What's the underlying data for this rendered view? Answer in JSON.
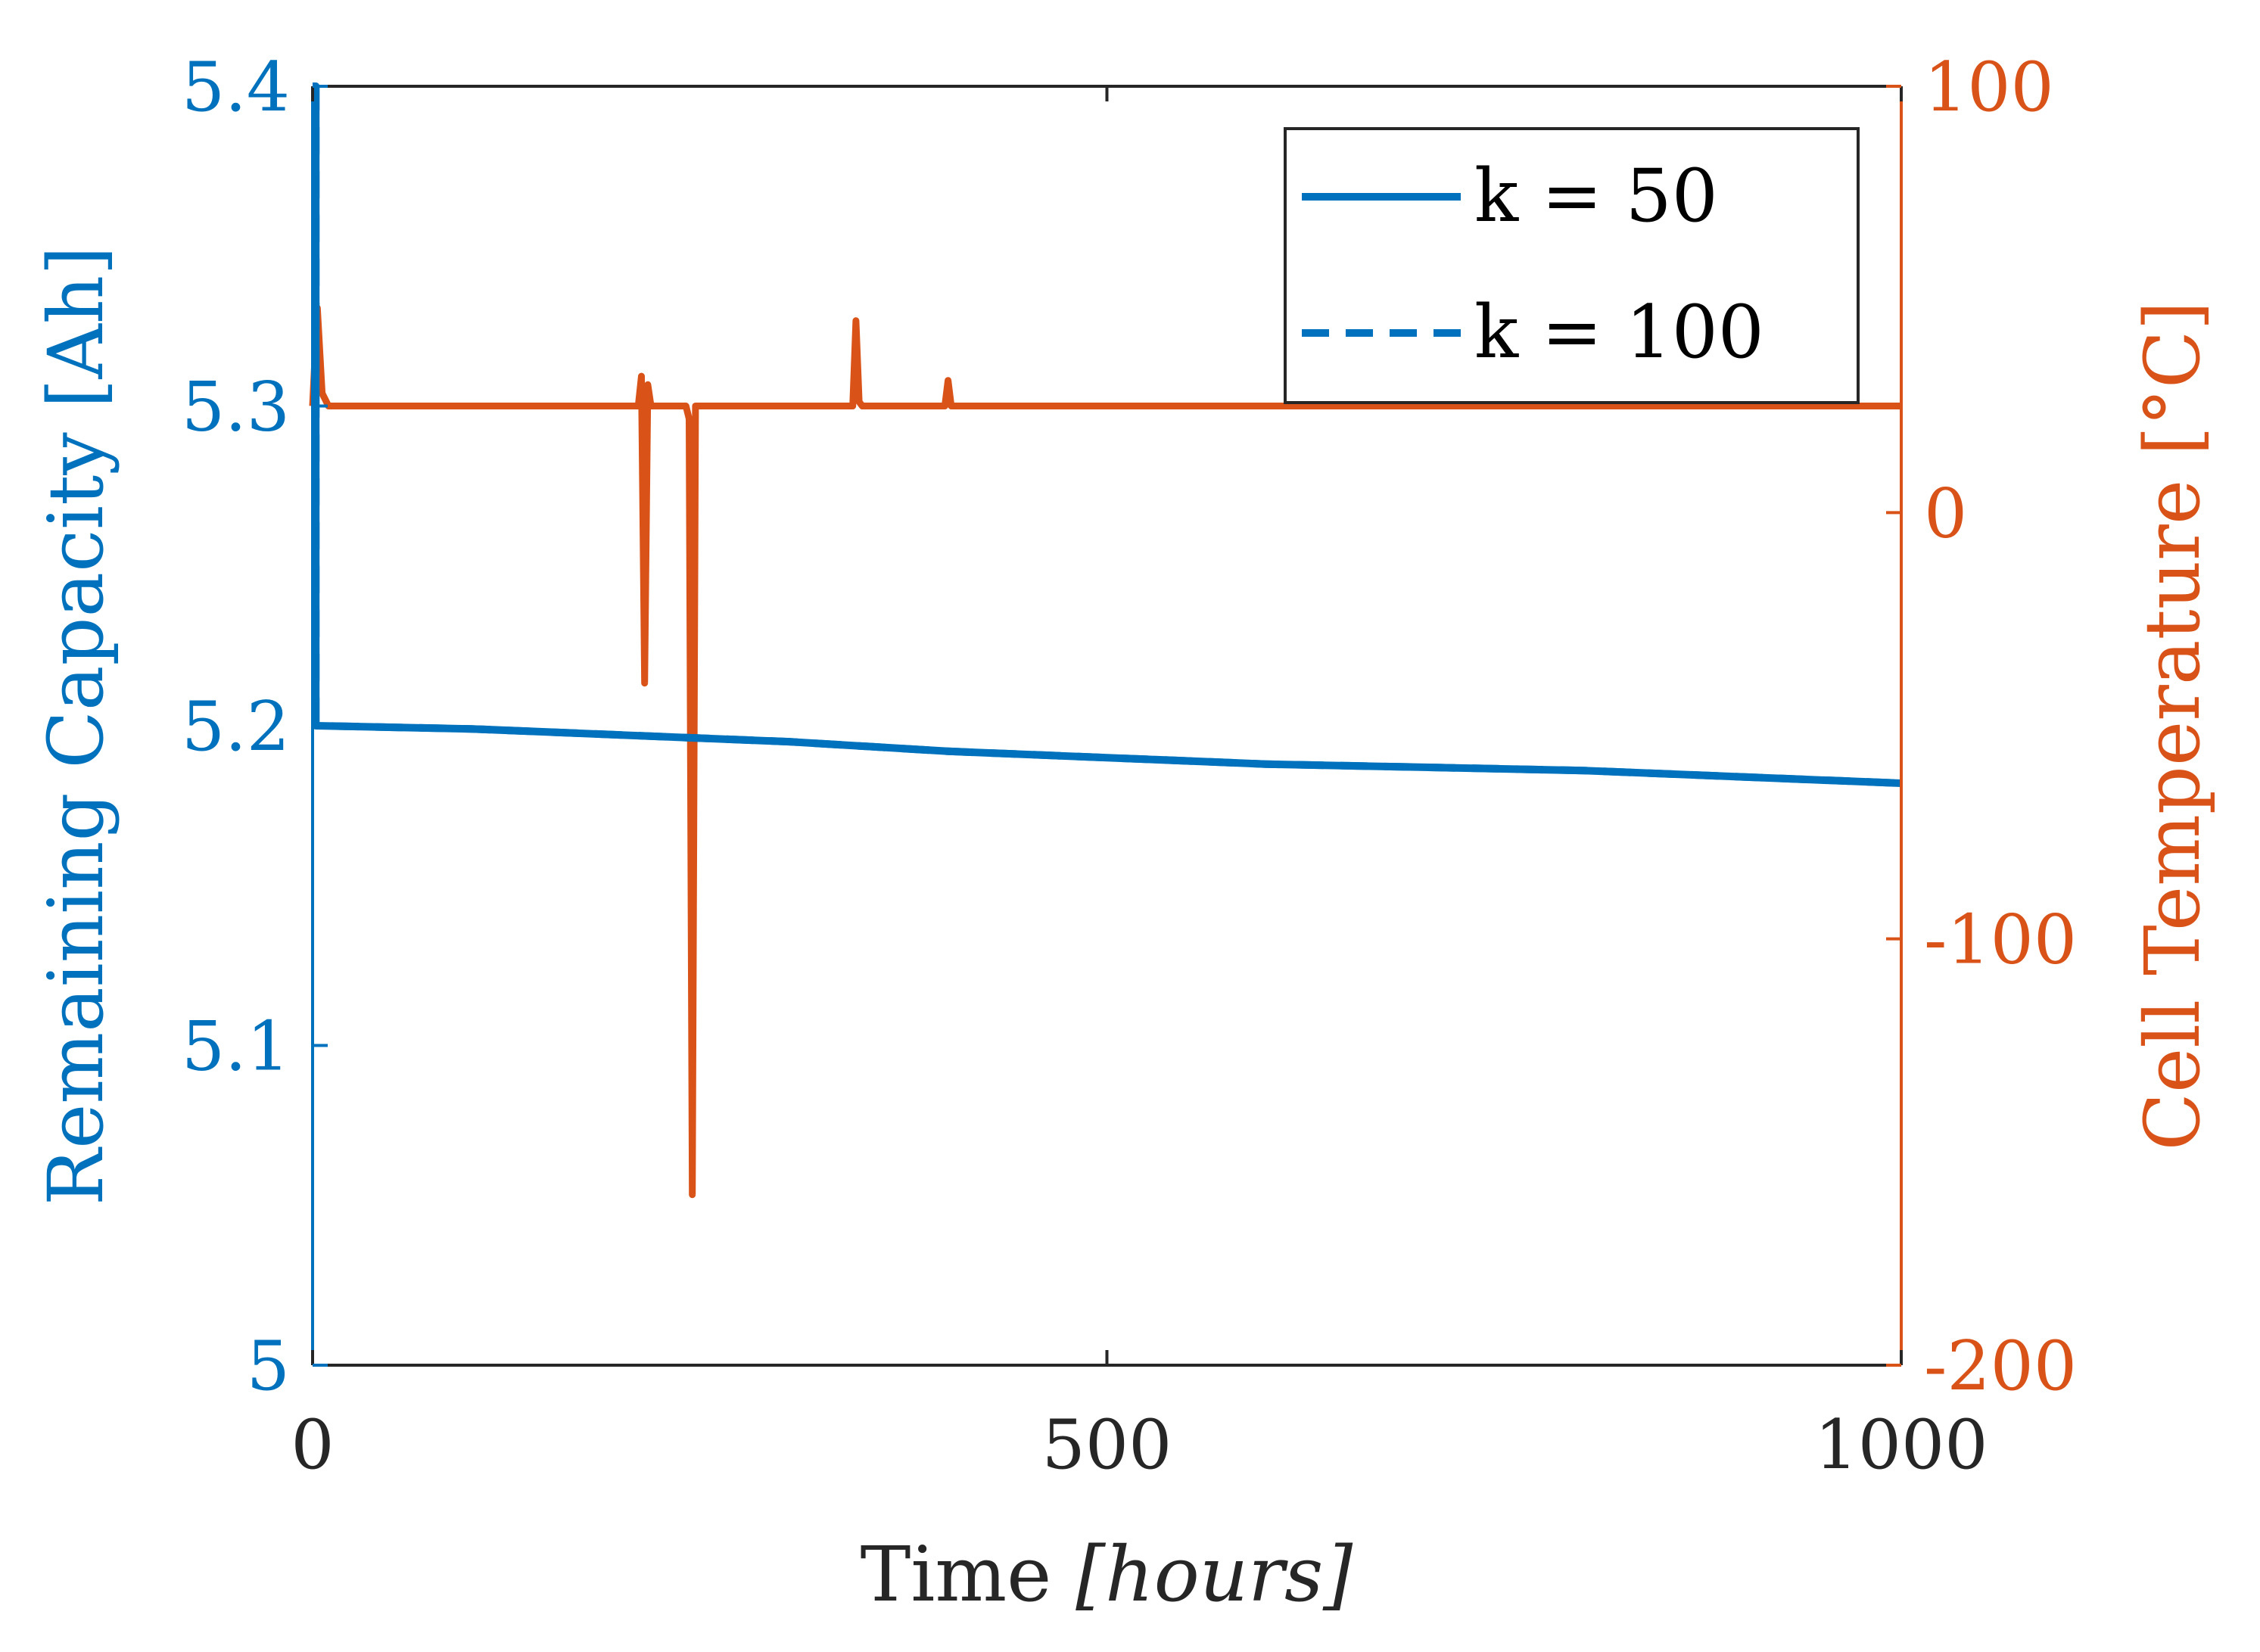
{
  "chart_data": {
    "type": "line",
    "title": "",
    "xlabel_main": "Time ",
    "xlabel_unit": "[hours]",
    "ylabel_left": "Remaining Capacity [Ah]",
    "ylabel_right": "Cell Temperature [°C]",
    "xlim": [
      0,
      1000
    ],
    "ylim_left": [
      5.0,
      5.4
    ],
    "ylim_right": [
      -200,
      100
    ],
    "x_ticks": [
      0,
      500,
      1000
    ],
    "y_left_ticks": [
      5,
      5.1,
      5.2,
      5.3,
      5.4
    ],
    "y_right_ticks": [
      -200,
      -100,
      0,
      100
    ],
    "x_tick_labels": [
      "0",
      "500",
      "1000"
    ],
    "y_left_tick_labels": [
      "5",
      "5.1",
      "5.2",
      "5.3",
      "5.4"
    ],
    "y_right_tick_labels": [
      "-200",
      "-100",
      "0",
      "100"
    ],
    "grid": false,
    "legend_position": "top-right",
    "colors": {
      "left_axis": "#0072BD",
      "right_axis": "#D95319",
      "axis_black": "#262626"
    },
    "series": [
      {
        "name": "k = 50",
        "axis": "left",
        "style": "solid",
        "color": "#0072BD",
        "x": [
          0,
          2,
          2,
          100,
          200,
          300,
          400,
          500,
          600,
          700,
          800,
          900,
          1000
        ],
        "y": [
          5.4,
          5.4,
          5.2,
          5.199,
          5.197,
          5.195,
          5.192,
          5.19,
          5.188,
          5.187,
          5.186,
          5.184,
          5.182
        ]
      },
      {
        "name": "k = 100",
        "axis": "left",
        "style": "dashed",
        "color": "#0072BD",
        "x": [
          0,
          2,
          2,
          100,
          200,
          300,
          400,
          500,
          600,
          700,
          800,
          900,
          1000
        ],
        "y": [
          5.4,
          5.4,
          5.2,
          5.199,
          5.197,
          5.195,
          5.192,
          5.19,
          5.188,
          5.187,
          5.186,
          5.184,
          5.182
        ]
      },
      {
        "name": "Cell Temperature",
        "axis": "right",
        "style": "solid",
        "color": "#D95319",
        "x": [
          0,
          3,
          6,
          10,
          205,
          207,
          209,
          211,
          213,
          235,
          237,
          239,
          241,
          243,
          340,
          342,
          344,
          346,
          398,
          400,
          402,
          1000
        ],
        "y": [
          25,
          48,
          28,
          25,
          25,
          32,
          -40,
          30,
          25,
          25,
          22,
          -160,
          25,
          25,
          25,
          45,
          26,
          25,
          25,
          31,
          25,
          25
        ]
      }
    ]
  }
}
